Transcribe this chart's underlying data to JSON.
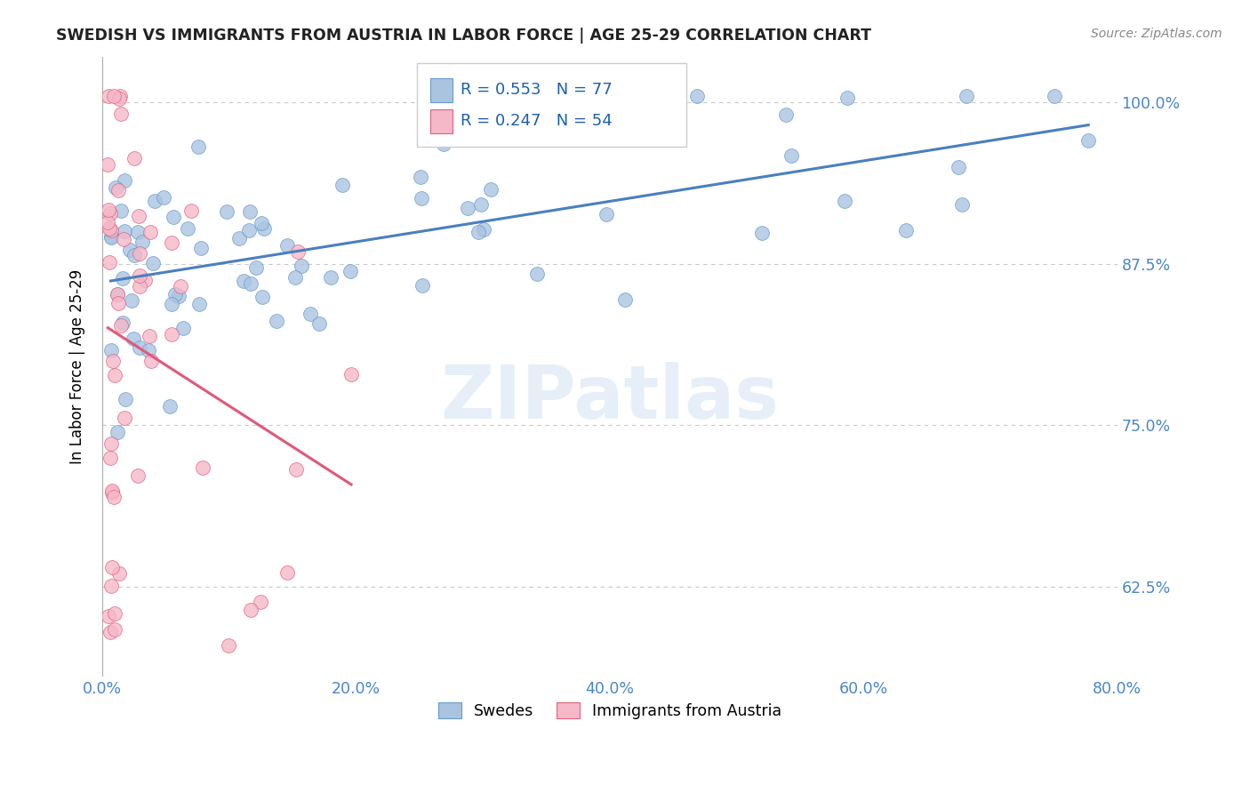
{
  "title": "SWEDISH VS IMMIGRANTS FROM AUSTRIA IN LABOR FORCE | AGE 25-29 CORRELATION CHART",
  "source": "Source: ZipAtlas.com",
  "ylabel": "In Labor Force | Age 25-29",
  "xlabel_ticks": [
    "0.0%",
    "20.0%",
    "40.0%",
    "60.0%",
    "80.0%"
  ],
  "xlabel_vals": [
    0.0,
    0.2,
    0.4,
    0.6,
    0.8
  ],
  "ylabel_ticks": [
    "62.5%",
    "75.0%",
    "87.5%",
    "100.0%"
  ],
  "ylabel_vals": [
    0.625,
    0.75,
    0.875,
    1.0
  ],
  "xlim": [
    0.0,
    0.8
  ],
  "ylim": [
    0.555,
    1.035
  ],
  "swedes_R": 0.553,
  "swedes_N": 77,
  "austria_R": 0.247,
  "austria_N": 54,
  "swedes_color": "#aac4e0",
  "swedes_edge_color": "#6699cc",
  "austria_color": "#f4b8c8",
  "austria_edge_color": "#e06080",
  "legend_swedes": "Swedes",
  "legend_austria": "Immigrants from Austria",
  "watermark": "ZIPatlas",
  "swedes_line_color": "#4a7fc0",
  "austria_line_color": "#e05878",
  "right_tick_color": "#4a86c8",
  "title_color": "#222222",
  "source_color": "#888888"
}
